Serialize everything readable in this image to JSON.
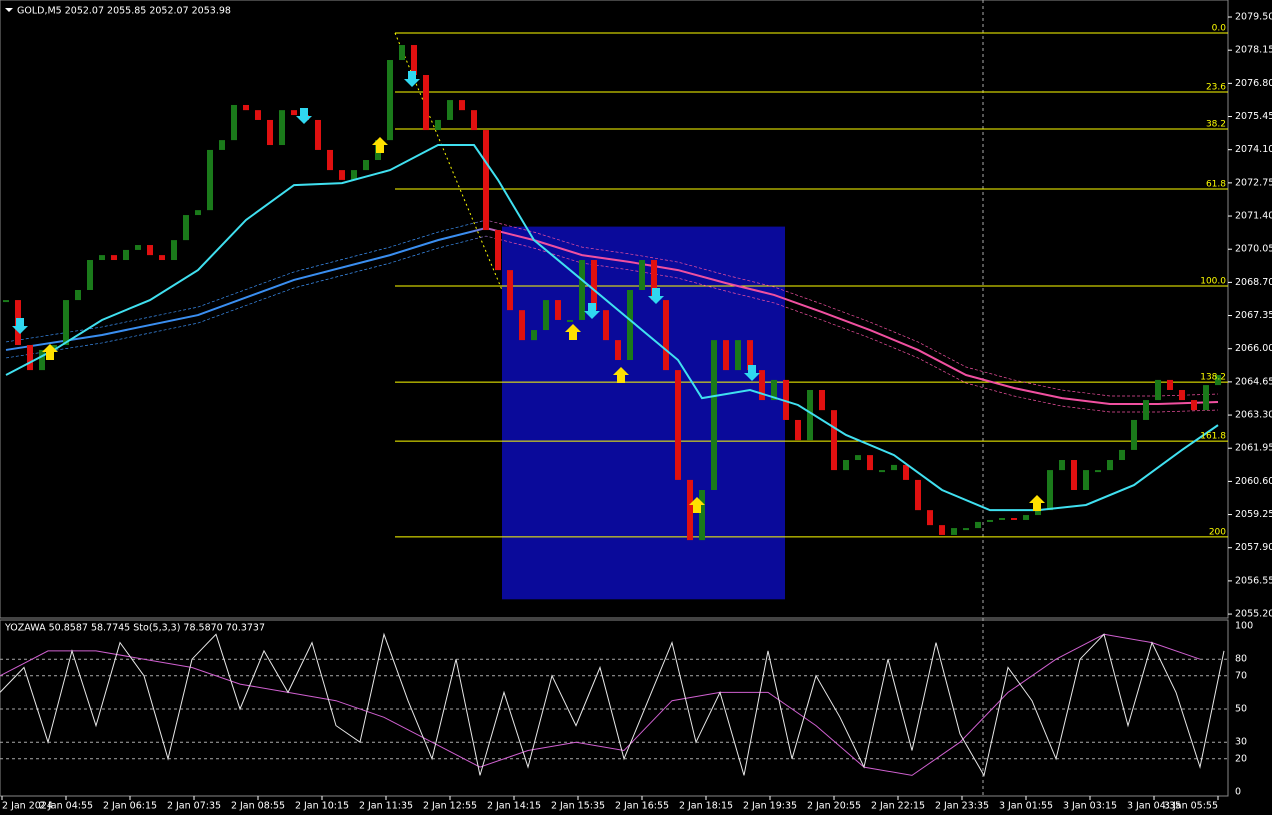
{
  "header": {
    "symbol": "GOLD,M5  2052.07 2055.85 2052.07 2053.98"
  },
  "indicator_header": "YOZAWA 50.8587 58.7745  Sto(5,3,3) 78.5870 70.3737",
  "price_chart": {
    "type": "bar",
    "ylim": [
      2055.04,
      2080.03
    ],
    "yticks": [
      {
        "value": 2079.5,
        "label": "2079.50"
      },
      {
        "value": 2078.15,
        "label": "2078.15"
      },
      {
        "value": 2076.8,
        "label": "2076.80"
      },
      {
        "value": 2075.45,
        "label": "2075.45"
      },
      {
        "value": 2074.1,
        "label": "2074.10"
      },
      {
        "value": 2072.75,
        "label": "2072.75"
      },
      {
        "value": 2071.4,
        "label": "2071.40"
      },
      {
        "value": 2070.05,
        "label": "2070.05"
      },
      {
        "value": 2068.7,
        "label": "2068.70"
      },
      {
        "value": 2067.35,
        "label": "2067.35"
      },
      {
        "value": 2066,
        "label": "2066.00"
      },
      {
        "value": 2064.65,
        "label": "2064.65"
      },
      {
        "value": 2063.3,
        "label": "2063.30"
      },
      {
        "value": 2061.95,
        "label": "2061.95"
      },
      {
        "value": 2060.6,
        "label": "2060.60"
      },
      {
        "value": 2059.25,
        "label": "2059.25"
      },
      {
        "value": 2057.9,
        "label": "2057.90"
      },
      {
        "value": 2056.55,
        "label": "2056.55"
      },
      {
        "value": 2055.2,
        "label": "2055.20"
      }
    ],
    "categories": [
      "2 Jan 2024",
      "2 Jan 04:55",
      "2 Jan 06:15",
      "2 Jan 07:35",
      "2 Jan 08:55",
      "2 Jan 10:15",
      "2 Jan 11:35",
      "2 Jan 12:55",
      "2 Jan 14:15",
      "2 Jan 15:35",
      "2 Jan 16:55",
      "2 Jan 18:15",
      "2 Jan 19:35",
      "2 Jan 20:55",
      "2 Jan 22:15",
      "2 Jan 23:35",
      "3 Jan 01:55",
      "3 Jan 03:15",
      "3 Jan 04:35",
      "3 Jan 05:55"
    ],
    "closes": [
      2067.98,
      2066.15,
      2065.13,
      2065.95,
      2066.15,
      2067.98,
      2068.39,
      2069.61,
      2069.81,
      2069.61,
      2070.02,
      2070.22,
      2069.81,
      2069.61,
      2070.42,
      2071.44,
      2071.64,
      2074.09,
      2074.49,
      2075.92,
      2075.71,
      2075.31,
      2074.29,
      2075.71,
      2075.51,
      2075.31,
      2074.09,
      2073.27,
      2072.87,
      2073.27,
      2073.68,
      2074.49,
      2077.75,
      2078.36,
      2077.14,
      2074.9,
      2075.31,
      2076.12,
      2075.71,
      2074.9,
      2070.83,
      2069.2,
      2067.57,
      2066.35,
      2066.76,
      2067.98,
      2067.17,
      2067.17,
      2069.61,
      2067.57,
      2066.35,
      2065.54,
      2068.39,
      2069.61,
      2067.98,
      2065.13,
      2060.66,
      2058.21,
      2060.25,
      2066.35,
      2065.13,
      2066.35,
      2065.13,
      2063.91,
      2064.73,
      2063.1,
      2062.28,
      2064.32,
      2063.5,
      2061.06,
      2061.47,
      2061.67,
      2061.06,
      2061.06,
      2061.27,
      2060.66,
      2059.43,
      2058.82,
      2058.42,
      2058.7,
      2058.7,
      2058.95,
      2059.03,
      2059.11,
      2059.03,
      2059.23,
      2059.43,
      2061.06,
      2061.47,
      2060.25,
      2061.06,
      2061.06,
      2061.47,
      2061.88,
      2063.1,
      2063.91,
      2064.73,
      2064.32,
      2063.91,
      2063.5,
      2064.52,
      2064.93
    ],
    "up_color": "#1a7a1a",
    "down_color": "#e01010",
    "fast_ma": {
      "color": "#40e0f0",
      "x": [
        0,
        4,
        8,
        12,
        16,
        20,
        24,
        28,
        32,
        36,
        39,
        41,
        44,
        48,
        52,
        56,
        58,
        62,
        66,
        70,
        74,
        78,
        82,
        86,
        90,
        94,
        98,
        101
      ],
      "values": [
        2064.93,
        2065.95,
        2067.17,
        2067.98,
        2069.2,
        2071.24,
        2072.66,
        2072.74,
        2073.27,
        2074.29,
        2074.29,
        2072.87,
        2070.42,
        2068.8,
        2067.17,
        2065.54,
        2063.99,
        2064.32,
        2063.71,
        2062.49,
        2061.67,
        2060.25,
        2059.43,
        2059.43,
        2059.64,
        2060.45,
        2061.88,
        2062.89
      ]
    },
    "slow_ma": {
      "color": "#3a8ef0",
      "color2": "#f050a0",
      "x": [
        0,
        8,
        16,
        24,
        32,
        36,
        40,
        44,
        48,
        52,
        56,
        60,
        64,
        68,
        72,
        76,
        80,
        84,
        88,
        92,
        96,
        101
      ],
      "values": [
        2065.95,
        2066.56,
        2067.37,
        2068.8,
        2069.81,
        2070.42,
        2070.91,
        2070.42,
        2069.81,
        2069.53,
        2069.2,
        2068.67,
        2068.19,
        2067.49,
        2066.76,
        2065.95,
        2064.93,
        2064.4,
        2063.99,
        2063.75,
        2063.75,
        2063.83
      ]
    },
    "fib_levels": [
      {
        "label": "0.0",
        "price": 2078.85
      },
      {
        "label": "23.6",
        "price": 2076.45
      },
      {
        "label": "38.2",
        "price": 2074.94
      },
      {
        "label": "61.8",
        "price": 2072.5
      },
      {
        "label": "100.0",
        "price": 2068.55
      },
      {
        "label": "138.2",
        "price": 2064.64
      },
      {
        "label": "161.8",
        "price": 2062.24
      },
      {
        "label": "200",
        "price": 2058.34
      }
    ],
    "fib_color": "#ffff00",
    "box": {
      "top": 2070.97,
      "bottom": 2055.8,
      "color": "#0a0a9a"
    }
  },
  "oscillator": {
    "ylim": [
      0,
      100
    ],
    "yticks": [
      100,
      80,
      70,
      50,
      30,
      20,
      0
    ],
    "main": [
      60,
      75,
      30,
      85,
      40,
      90,
      70,
      20,
      80,
      95,
      50,
      85,
      60,
      90,
      40,
      30,
      95,
      55,
      20,
      80,
      10,
      60,
      15,
      70,
      40,
      75,
      20,
      55,
      90,
      30,
      60,
      10,
      85,
      20,
      70,
      45,
      15,
      80,
      25,
      90,
      35,
      10,
      75,
      55,
      20,
      80,
      95,
      40,
      90,
      60,
      15,
      85
    ],
    "signal": [
      70,
      85,
      85,
      80,
      75,
      65,
      60,
      55,
      45,
      30,
      15,
      25,
      30,
      25,
      55,
      60,
      60,
      40,
      15,
      10,
      30,
      60,
      80,
      95,
      90,
      80
    ]
  }
}
